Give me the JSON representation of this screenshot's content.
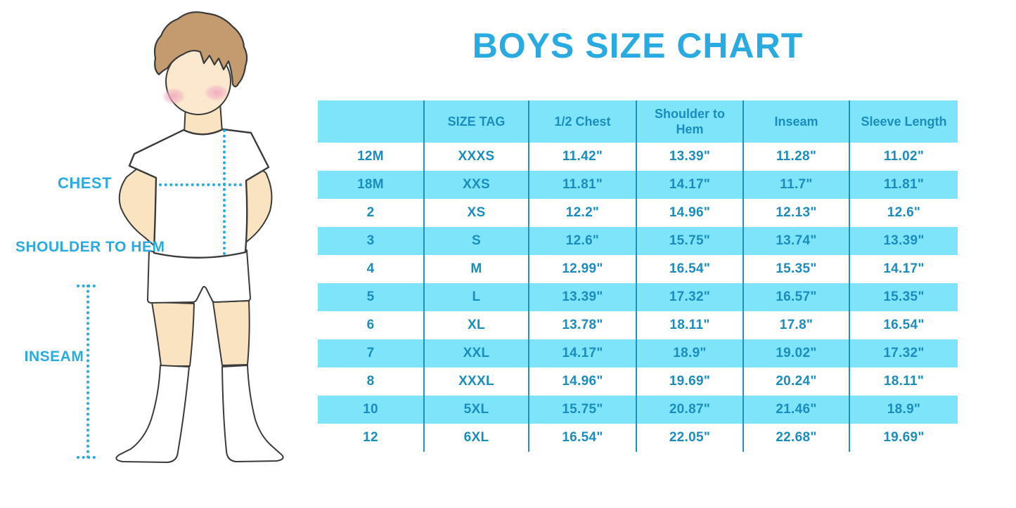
{
  "title": "BOYS SIZE CHART",
  "figure": {
    "description": "Outline illustration of a boy wearing a t-shirt, shorts and knee socks with dotted measurement guides",
    "labels": {
      "chest": "CHEST",
      "shoulder_to_hem": "SHOULDER TO HEM",
      "inseam": "INSEAM"
    }
  },
  "colors": {
    "accent_blue": "#29ABE2",
    "table_text_blue": "#1B8CBE",
    "row_light_blue": "#7DE4FA",
    "column_divider_blue": "#2191C4",
    "skin": "#FAE3C0",
    "hair_brown": "#C49B6F",
    "cheek_pink": "#F0A9BE",
    "outline": "#3B3B3B"
  },
  "chart_data": {
    "type": "table",
    "title": "BOYS SIZE CHART",
    "columns": [
      "",
      "SIZE TAG",
      "1/2 Chest",
      "Shoulder to Hem",
      "Inseam",
      "Sleeve Length"
    ],
    "rows": [
      [
        "12M",
        "XXXS",
        "11.42\"",
        "13.39\"",
        "11.28\"",
        "11.02\""
      ],
      [
        "18M",
        "XXS",
        "11.81\"",
        "14.17\"",
        "11.7\"",
        "11.81\""
      ],
      [
        "2",
        "XS",
        "12.2\"",
        "14.96\"",
        "12.13\"",
        "12.6\""
      ],
      [
        "3",
        "S",
        "12.6\"",
        "15.75\"",
        "13.74\"",
        "13.39\""
      ],
      [
        "4",
        "M",
        "12.99\"",
        "16.54\"",
        "15.35\"",
        "14.17\""
      ],
      [
        "5",
        "L",
        "13.39\"",
        "17.32\"",
        "16.57\"",
        "15.35\""
      ],
      [
        "6",
        "XL",
        "13.78\"",
        "18.11\"",
        "17.8\"",
        "16.54\""
      ],
      [
        "7",
        "XXL",
        "14.17\"",
        "18.9\"",
        "19.02\"",
        "17.32\""
      ],
      [
        "8",
        "XXXL",
        "14.96\"",
        "19.69\"",
        "20.24\"",
        "18.11\""
      ],
      [
        "10",
        "5XL",
        "15.75\"",
        "20.87\"",
        "21.46\"",
        "18.9\""
      ],
      [
        "12",
        "6XL",
        "16.54\"",
        "22.05\"",
        "22.68\"",
        "19.69\""
      ]
    ]
  }
}
